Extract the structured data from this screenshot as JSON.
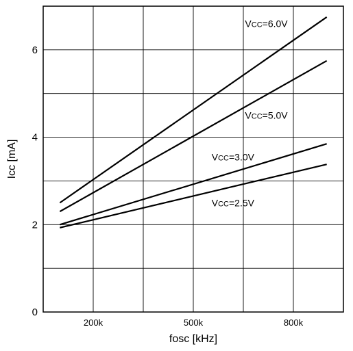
{
  "chart_data": {
    "type": "line",
    "xlabel": "fosc [kHz]",
    "ylabel": "Icc [mA]",
    "xlim": [
      50,
      950
    ],
    "ylim": [
      0,
      7
    ],
    "x_ticks": [
      {
        "value": 200,
        "label": "200k"
      },
      {
        "value": 500,
        "label": "500k"
      },
      {
        "value": 800,
        "label": "800k"
      }
    ],
    "y_ticks": [
      {
        "value": 0,
        "label": "0"
      },
      {
        "value": 2,
        "label": "2"
      },
      {
        "value": 4,
        "label": "4"
      },
      {
        "value": 6,
        "label": "6"
      }
    ],
    "x_grid_step": 150,
    "y_grid_step": 1,
    "grid": true,
    "series": [
      {
        "name": "Vcc=6.0V",
        "label_main": "V",
        "label_sub": "CC",
        "label_rest": "=6.0V",
        "label_pos": {
          "x": 655,
          "y": 6.6
        },
        "x": [
          100,
          900
        ],
        "y": [
          2.5,
          6.75
        ]
      },
      {
        "name": "Vcc=5.0V",
        "label_main": "V",
        "label_sub": "CC",
        "label_rest": "=5.0V",
        "label_pos": {
          "x": 655,
          "y": 4.5
        },
        "x": [
          100,
          900
        ],
        "y": [
          2.3,
          5.75
        ]
      },
      {
        "name": "Vcc=3.0V",
        "label_main": "V",
        "label_sub": "CC",
        "label_rest": "=3.0V",
        "label_pos": {
          "x": 555,
          "y": 3.55
        },
        "x": [
          100,
          900
        ],
        "y": [
          2.0,
          3.85
        ]
      },
      {
        "name": "Vcc=2.5V",
        "label_main": "V",
        "label_sub": "CC",
        "label_rest": "=2.5V",
        "label_pos": {
          "x": 555,
          "y": 2.5
        },
        "x": [
          100,
          900
        ],
        "y": [
          1.93,
          3.38
        ]
      }
    ]
  }
}
